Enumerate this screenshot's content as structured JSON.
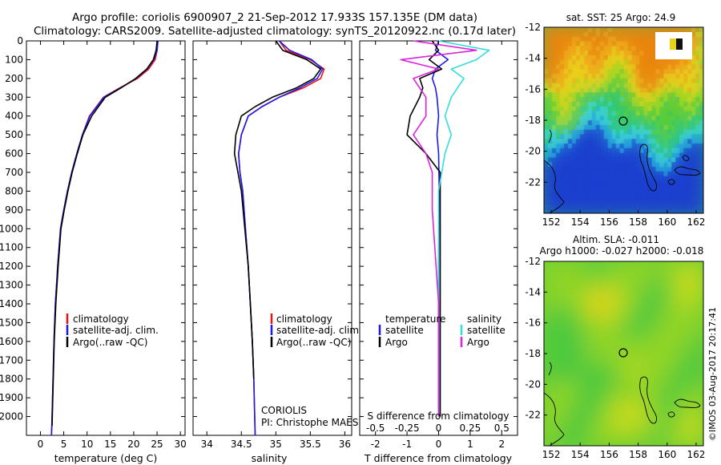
{
  "header": {
    "line1": "Argo profile: coriolis 6900907_2 21-Sep-2012 17.933S 157.135E (DM data)",
    "line2": "Climatology: CARS2009. Satellite-adjusted climatology: synTS_20120922.nc (0.17d later)"
  },
  "colors": {
    "climatology": "#ee1111",
    "satellite": "#1a1aee",
    "argo": "#000000",
    "salinity_satellite": "#33dddd",
    "salinity_argo": "#dd22dd"
  },
  "chart_data": [
    {
      "type": "line",
      "xlabel": "temperature (deg C)",
      "ylabel": "",
      "xlim": [
        -3,
        31
      ],
      "ylim": [
        2100,
        0
      ],
      "xticks": [
        "0",
        "5",
        "10",
        "15",
        "20",
        "25",
        "30"
      ],
      "yticks": [
        "0",
        "100",
        "200",
        "300",
        "400",
        "500",
        "600",
        "700",
        "800",
        "900",
        "1000",
        "1100",
        "1200",
        "1300",
        "1400",
        "1500",
        "1600",
        "1700",
        "1800",
        "1900",
        "2000"
      ],
      "legend": [
        "climatology",
        "satellite-adj. clim.",
        "Argo(..raw -QC)"
      ],
      "series": [
        {
          "name": "climatology",
          "x": [
            25.1,
            25.0,
            24.6,
            23.2,
            20.8,
            17.0,
            13.5,
            10.5,
            9.0,
            7.8,
            6.7,
            5.8,
            5.0,
            4.3,
            3.7,
            3.2,
            2.9,
            2.7,
            2.55,
            2.45,
            2.35
          ],
          "y": [
            0,
            50,
            100,
            150,
            200,
            250,
            300,
            400,
            500,
            600,
            700,
            800,
            900,
            1000,
            1200,
            1400,
            1600,
            1800,
            1950,
            2050,
            2100
          ]
        },
        {
          "name": "satellite-adj. clim.",
          "x": [
            25.2,
            25.0,
            24.3,
            22.9,
            20.5,
            17.2,
            13.6,
            10.6,
            9.0,
            7.8,
            6.7,
            5.8,
            5.0,
            4.3,
            3.7,
            3.2,
            2.9,
            2.7,
            2.55,
            2.45,
            2.35
          ],
          "y": [
            0,
            50,
            100,
            150,
            200,
            250,
            300,
            400,
            500,
            600,
            700,
            800,
            900,
            1000,
            1200,
            1400,
            1600,
            1800,
            1950,
            2050,
            2100
          ]
        },
        {
          "name": "Argo(..raw -QC)",
          "x": [
            25.0,
            24.8,
            24.2,
            22.8,
            20.4,
            17.3,
            13.9,
            11.0,
            9.1,
            7.9,
            6.8,
            5.9,
            5.1,
            4.4,
            3.8,
            3.3,
            2.95,
            2.75,
            2.6,
            2.5
          ],
          "y": [
            0,
            50,
            100,
            150,
            200,
            250,
            300,
            400,
            500,
            600,
            700,
            800,
            900,
            1000,
            1200,
            1400,
            1600,
            1800,
            1950,
            2050
          ]
        }
      ]
    },
    {
      "type": "line",
      "xlabel": "salinity",
      "ylabel": "",
      "xlim": [
        33.8,
        36.1
      ],
      "ylim": [
        2100,
        0
      ],
      "xticks": [
        "34",
        "34.5",
        "35",
        "35.5",
        "36"
      ],
      "legend": [
        "climatology",
        "satellite-adj. clim.",
        "Argo(..raw -QC)"
      ],
      "annotations": [
        "CORIOLIS",
        "PI: Christophe MAES"
      ],
      "series": [
        {
          "name": "climatology",
          "x": [
            35.05,
            35.15,
            35.5,
            35.7,
            35.65,
            35.4,
            35.05,
            34.8,
            34.6,
            34.5,
            34.46,
            34.48,
            34.52,
            34.56,
            34.6,
            34.63,
            34.66,
            34.68,
            34.7
          ],
          "y": [
            0,
            50,
            100,
            150,
            200,
            250,
            300,
            350,
            400,
            500,
            600,
            700,
            800,
            1000,
            1200,
            1400,
            1600,
            1800,
            2100
          ]
        },
        {
          "name": "satellite-adj. clim.",
          "x": [
            35.05,
            35.2,
            35.52,
            35.68,
            35.6,
            35.35,
            35.05,
            34.8,
            34.6,
            34.5,
            34.46,
            34.48,
            34.52,
            34.56,
            34.6,
            34.63,
            34.66,
            34.68,
            34.7
          ],
          "y": [
            0,
            50,
            100,
            150,
            200,
            250,
            300,
            350,
            400,
            500,
            600,
            700,
            800,
            1000,
            1200,
            1400,
            1600,
            1800,
            2100
          ]
        },
        {
          "name": "Argo(..raw -QC)",
          "x": [
            35.0,
            35.1,
            35.45,
            35.65,
            35.55,
            35.3,
            34.95,
            34.7,
            34.5,
            34.42,
            34.4,
            34.45,
            34.5,
            34.55,
            34.6,
            34.63,
            34.66,
            34.68
          ],
          "y": [
            0,
            50,
            100,
            150,
            200,
            250,
            300,
            350,
            400,
            500,
            600,
            700,
            800,
            1000,
            1200,
            1400,
            1600,
            1800
          ]
        }
      ]
    },
    {
      "type": "line",
      "xlabel": "T difference from climatology",
      "xlabel2": "S difference from climatology",
      "xlim": [
        -2.5,
        2.5
      ],
      "ylim": [
        2100,
        0
      ],
      "xticks": [
        "-2",
        "-1",
        "0",
        "1",
        "2"
      ],
      "xticks_top": [
        "-0.5",
        "-0.25",
        "0",
        "0.25",
        "0.5"
      ],
      "legend_titles": [
        "temperature",
        "salinity"
      ],
      "legend": [
        "satellite",
        "Argo",
        "satellite",
        "Argo"
      ],
      "series": [
        {
          "name": "satellite",
          "group": "temperature",
          "x": [
            0.0,
            -0.1,
            0.3,
            -0.1,
            -0.2,
            -0.1,
            -0.05,
            0.0,
            -0.05,
            0.0,
            0.02,
            0.0,
            0.0,
            0.0
          ],
          "y": [
            0,
            50,
            100,
            150,
            200,
            250,
            300,
            400,
            500,
            600,
            800,
            1200,
            1600,
            2000
          ]
        },
        {
          "name": "Argo",
          "group": "temperature",
          "x": [
            -0.2,
            0.0,
            -0.3,
            0.1,
            -0.6,
            -0.5,
            -0.6,
            -0.9,
            -1.0,
            -0.4,
            0.05,
            0.05,
            0.05,
            0.05
          ],
          "y": [
            0,
            50,
            100,
            150,
            200,
            250,
            300,
            400,
            500,
            600,
            700,
            900,
            1400,
            2000
          ]
        },
        {
          "name": "satellite",
          "group": "salinity",
          "x": [
            0.0,
            0.4,
            0.3,
            0.1,
            0.2,
            0.1,
            0.05,
            0.1,
            0.05,
            0.0,
            0.0,
            0.0,
            0.0
          ],
          "y": [
            0,
            50,
            100,
            150,
            200,
            300,
            400,
            500,
            600,
            800,
            1200,
            1600,
            2000
          ]
        },
        {
          "name": "Argo",
          "group": "salinity",
          "x": [
            -0.2,
            0.3,
            -0.3,
            0.0,
            -0.2,
            -0.1,
            -0.1,
            -0.2,
            -0.1,
            -0.05,
            -0.05,
            0.0,
            0.0
          ],
          "y": [
            0,
            50,
            100,
            150,
            200,
            300,
            400,
            500,
            600,
            700,
            900,
            1400,
            2000
          ]
        }
      ]
    },
    {
      "type": "heatmap",
      "title": "sat. SST: 25 Argo: 24.9",
      "xlim": [
        151.5,
        162.5
      ],
      "ylim": [
        -24,
        -12
      ],
      "xticks": [
        "152",
        "154",
        "156",
        "158",
        "160",
        "162"
      ],
      "yticks": [
        "-12",
        "-14",
        "-16",
        "-18",
        "-20",
        "-22"
      ],
      "colormap": [
        "#1a3fcf",
        "#22a9e0",
        "#3fd8d8",
        "#2ec86a",
        "#56cc3a",
        "#a6d81e",
        "#e8d21a",
        "#f0a71a",
        "#e8840e"
      ]
    },
    {
      "type": "heatmap",
      "title": "Altim. SLA: -0.011",
      "subtitle": "Argo h1000: -0.027 h2000: -0.018",
      "xlim": [
        151.5,
        162.5
      ],
      "ylim": [
        -24,
        -12
      ],
      "xticks": [
        "152",
        "154",
        "156",
        "158",
        "160",
        "162"
      ],
      "yticks": [
        "-12",
        "-14",
        "-16",
        "-18",
        "-20",
        "-22"
      ],
      "colormap": [
        "#22c070",
        "#4ec93c",
        "#8fd428",
        "#c8da1c",
        "#e8c71a",
        "#f0a31a"
      ]
    }
  ],
  "footer": {
    "credit": "©IMOS 03-Aug-2017 20:17:41"
  }
}
